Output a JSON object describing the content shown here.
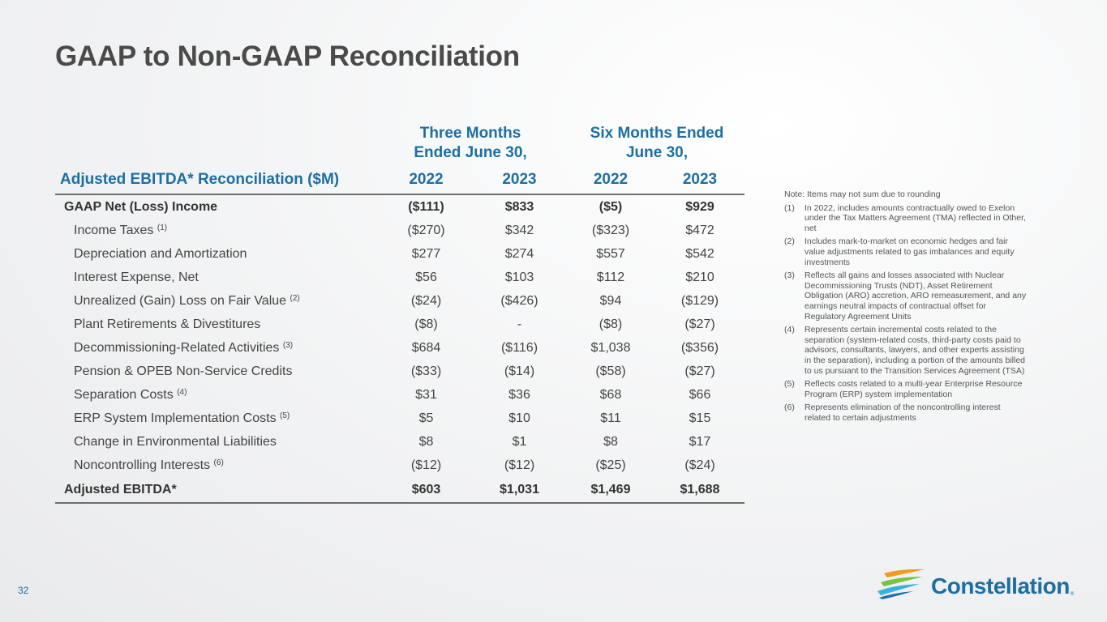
{
  "page": {
    "title": "GAAP to Non-GAAP Reconciliation",
    "page_number": "32"
  },
  "table": {
    "period_three": [
      "Three Months",
      "Ended June 30,"
    ],
    "period_six": [
      "Six Months Ended",
      "June 30,"
    ],
    "label_header": "Adjusted EBITDA* Reconciliation ($M)",
    "year_headers": [
      "2022",
      "2023",
      "2022",
      "2023"
    ],
    "rows": [
      {
        "label": "GAAP Net (Loss) Income",
        "fn": "",
        "bold": true,
        "values": [
          "($111)",
          "$833",
          "($5)",
          "$929"
        ]
      },
      {
        "label": "Income Taxes",
        "fn": "(1)",
        "bold": false,
        "values": [
          "($270)",
          "$342",
          "($323)",
          "$472"
        ]
      },
      {
        "label": "Depreciation and Amortization",
        "fn": "",
        "bold": false,
        "values": [
          "$277",
          "$274",
          "$557",
          "$542"
        ]
      },
      {
        "label": "Interest Expense, Net",
        "fn": "",
        "bold": false,
        "values": [
          "$56",
          "$103",
          "$112",
          "$210"
        ]
      },
      {
        "label": "Unrealized (Gain) Loss on Fair Value",
        "fn": "(2)",
        "bold": false,
        "values": [
          "($24)",
          "($426)",
          "$94",
          "($129)"
        ]
      },
      {
        "label": "Plant Retirements & Divestitures",
        "fn": "",
        "bold": false,
        "values": [
          "($8)",
          "-",
          "($8)",
          "($27)"
        ]
      },
      {
        "label": "Decommissioning-Related Activities",
        "fn": "(3)",
        "bold": false,
        "values": [
          "$684",
          "($116)",
          "$1,038",
          "($356)"
        ]
      },
      {
        "label": "Pension & OPEB Non-Service Credits",
        "fn": "",
        "bold": false,
        "values": [
          "($33)",
          "($14)",
          "($58)",
          "($27)"
        ]
      },
      {
        "label": "Separation Costs",
        "fn": "(4)",
        "bold": false,
        "values": [
          "$31",
          "$36",
          "$68",
          "$66"
        ]
      },
      {
        "label": "ERP System Implementation Costs",
        "fn": "(5)",
        "bold": false,
        "values": [
          "$5",
          "$10",
          "$11",
          "$15"
        ]
      },
      {
        "label": "Change in Environmental Liabilities",
        "fn": "",
        "bold": false,
        "values": [
          "$8",
          "$1",
          "$8",
          "$17"
        ]
      },
      {
        "label": "Noncontrolling Interests",
        "fn": "(6)",
        "bold": false,
        "values": [
          "($12)",
          "($12)",
          "($25)",
          "($24)"
        ]
      },
      {
        "label": "Adjusted EBITDA*",
        "fn": "",
        "bold": true,
        "total": true,
        "values": [
          "$603",
          "$1,031",
          "$1,469",
          "$1,688"
        ]
      }
    ]
  },
  "notes": {
    "heading": "Note: Items may not sum due to rounding",
    "footnotes": [
      {
        "num": "(1)",
        "text": "In 2022, includes amounts contractually owed to Exelon under the Tax Matters Agreement (TMA) reflected in Other, net"
      },
      {
        "num": "(2)",
        "text": "Includes mark-to-market on economic hedges and fair value adjustments related to gas imbalances and equity investments"
      },
      {
        "num": "(3)",
        "text": "Reflects all gains and losses associated with Nuclear Decommissioning Trusts (NDT), Asset Retirement Obligation (ARO) accretion, ARO remeasurement, and any earnings neutral impacts of contractual offset for Regulatory Agreement Units"
      },
      {
        "num": "(4)",
        "text": "Represents certain incremental costs related to the separation (system-related costs, third-party costs paid to advisors, consultants, lawyers, and other experts assisting in the separation), including a portion of the amounts billed to us pursuant to the Transition Services Agreement (TSA)"
      },
      {
        "num": "(5)",
        "text": "Reflects costs related to a multi-year Enterprise Resource Program (ERP) system implementation"
      },
      {
        "num": "(6)",
        "text": "Represents elimination of the noncontrolling interest related to certain adjustments"
      }
    ]
  },
  "logo": {
    "name": "Constellation",
    "reg": "®"
  },
  "colors": {
    "accent": "#1b6fa3",
    "logo_orange": "#f39a1e",
    "logo_green": "#7cc242",
    "logo_light_blue": "#3ab0e2"
  }
}
